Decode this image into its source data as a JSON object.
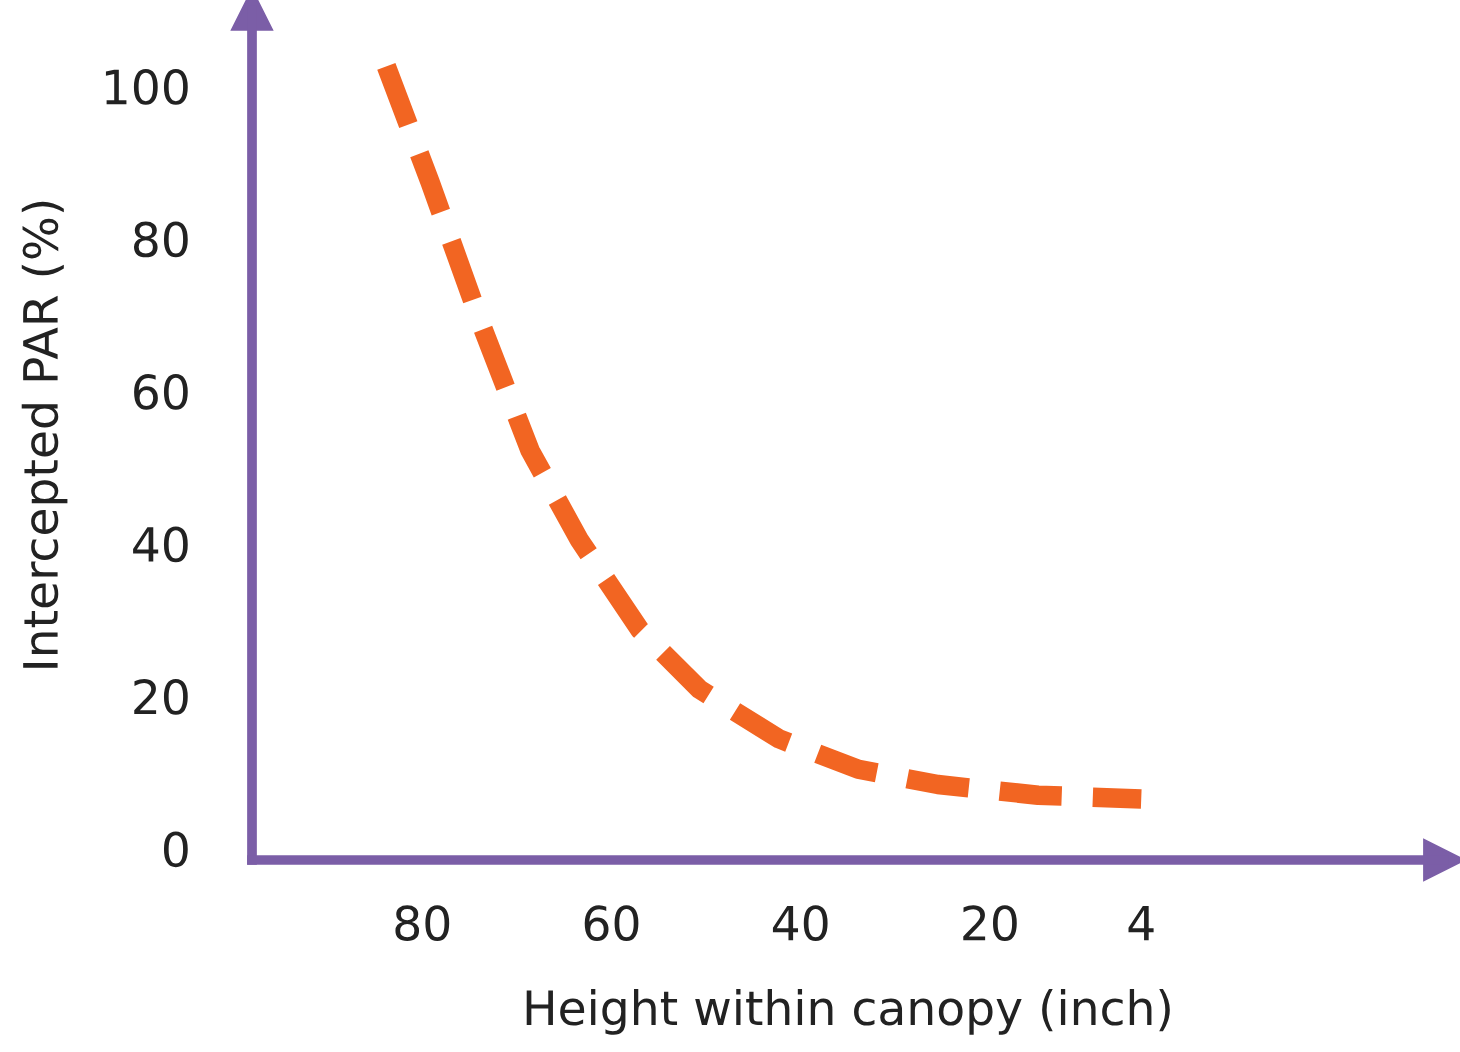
{
  "chart_data": {
    "type": "line",
    "xlabel": "Height within canopy (inch)",
    "ylabel": "Intercepted PAR (%)",
    "x": [
      83.8,
      79.2,
      73.9,
      68.6,
      63.4,
      57,
      50.7,
      42.3,
      33.9,
      25.5,
      14.9,
      4
    ],
    "series": [
      {
        "color": "#f26522",
        "values": [
          102.6,
          87.5,
          69.2,
          52.2,
          40.5,
          28.7,
          20.9,
          14.4,
          10.4,
          8.4,
          7.0,
          6.5
        ]
      }
    ],
    "line_style": "dashed",
    "marker": "none",
    "grid": false,
    "legend": false,
    "xlim": [
      98,
      -28
    ],
    "ylim": [
      -1.5,
      110
    ],
    "xticks": [
      80,
      60,
      40,
      20,
      4
    ],
    "yticks": [
      0,
      20,
      40,
      60,
      80,
      100
    ]
  }
}
